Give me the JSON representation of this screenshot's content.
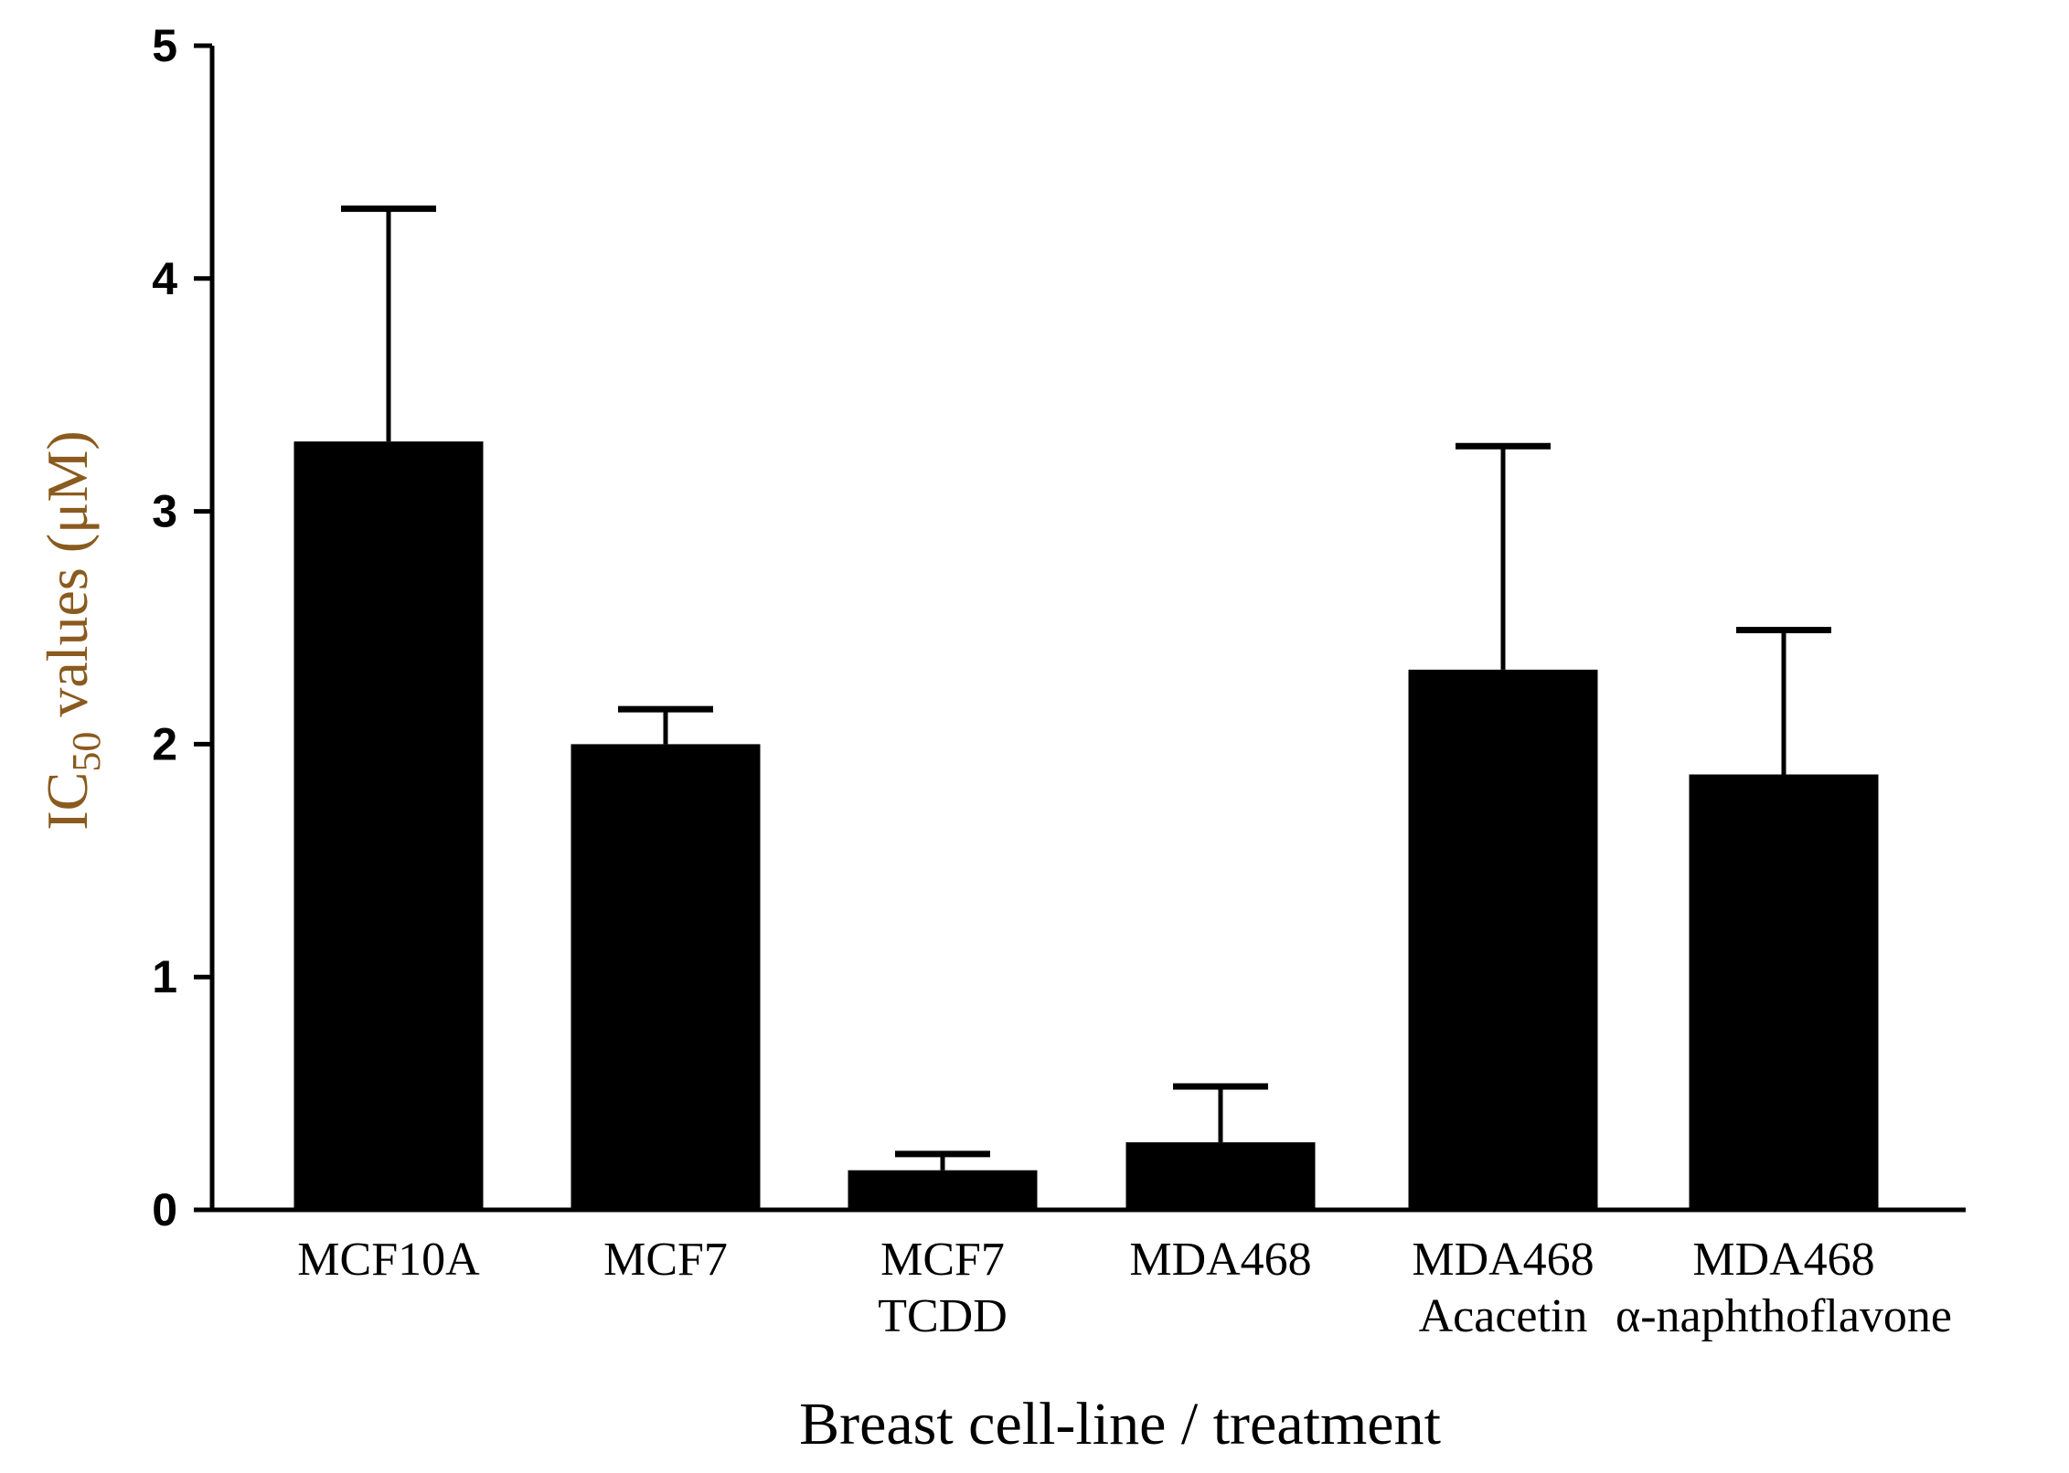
{
  "chart_data": {
    "type": "bar",
    "title": "",
    "xlabel": "Breast cell-line / treatment",
    "ylabel": {
      "prefix": "IC",
      "subscript": "50",
      "suffix": " values (μM)"
    },
    "ylim": [
      0,
      5
    ],
    "yticks": [
      "0",
      "1",
      "2",
      "3",
      "4",
      "5"
    ],
    "categories": [
      [
        "MCF10A"
      ],
      [
        "MCF7"
      ],
      [
        "MCF7",
        "TCDD"
      ],
      [
        "MDA468"
      ],
      [
        "MDA468",
        "Acacetin"
      ],
      [
        "MDA468",
        "α-naphthoflavone"
      ]
    ],
    "values": [
      3.3,
      2.0,
      0.17,
      0.29,
      2.32,
      1.87
    ],
    "errors": [
      1.0,
      0.15,
      0.07,
      0.24,
      0.96,
      0.62
    ],
    "bar_color": "#000000",
    "ylabel_color": "#8a5a1e",
    "grid": false,
    "legend": "none"
  }
}
